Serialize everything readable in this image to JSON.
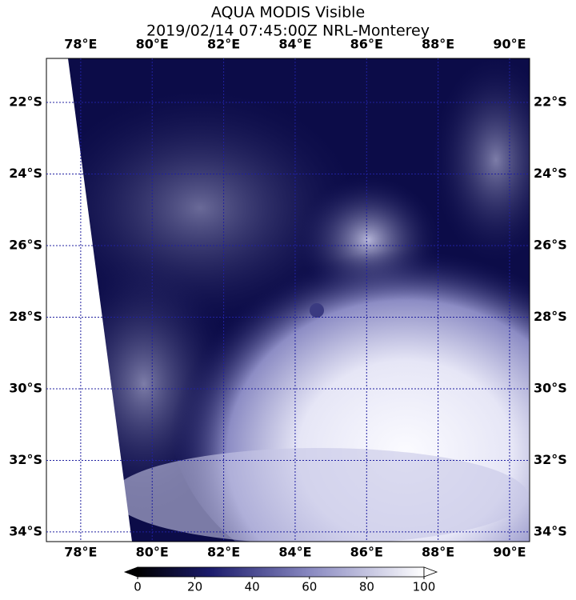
{
  "title": "AQUA MODIS Visible",
  "subtitle": "2019/02/14 07:45:00Z NRL-Monterey",
  "map": {
    "lon_range": [
      77.04,
      90.56
    ],
    "lat_range": [
      20.77,
      34.27
    ],
    "lon_ticks": [
      {
        "value": 78,
        "label": "78°E"
      },
      {
        "value": 80,
        "label": "80°E"
      },
      {
        "value": 82,
        "label": "82°E"
      },
      {
        "value": 84,
        "label": "84°E"
      },
      {
        "value": 86,
        "label": "86°E"
      },
      {
        "value": 88,
        "label": "88°E"
      },
      {
        "value": 90,
        "label": "90°E"
      }
    ],
    "lat_ticks": [
      {
        "value": 22,
        "label": "22°S"
      },
      {
        "value": 24,
        "label": "24°S"
      },
      {
        "value": 26,
        "label": "26°S"
      },
      {
        "value": 28,
        "label": "28°S"
      },
      {
        "value": 30,
        "label": "30°S"
      },
      {
        "value": 32,
        "label": "32°S"
      },
      {
        "value": 34,
        "label": "34°S"
      }
    ]
  },
  "colorbar": {
    "lim": [
      0,
      100
    ],
    "ticks": [
      0,
      20,
      40,
      60,
      80,
      100
    ]
  }
}
